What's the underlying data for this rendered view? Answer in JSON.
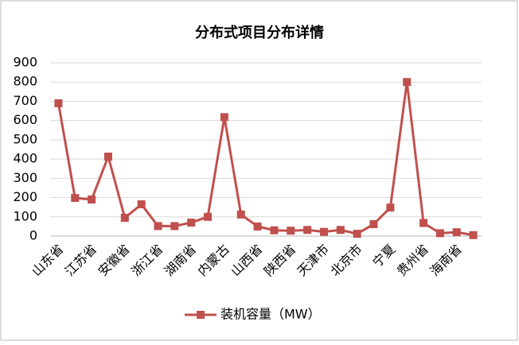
{
  "chart_data": {
    "type": "line",
    "title": "分布式项目分布详情",
    "categories": [
      "山东省",
      null,
      "江苏省",
      null,
      "安徽省",
      null,
      "浙江省",
      null,
      "湖南省",
      null,
      "内蒙古",
      null,
      "山西省",
      null,
      "陕西省",
      null,
      "天津市",
      null,
      "北京市",
      null,
      "宁夏",
      null,
      "贵州省",
      null,
      "海南省",
      null
    ],
    "series": [
      {
        "name": "装机容量（MW）",
        "color": "#c0504d",
        "values": [
          690,
          198,
          190,
          413,
          95,
          165,
          52,
          52,
          70,
          100,
          618,
          112,
          50,
          30,
          28,
          32,
          22,
          32,
          12,
          62,
          148,
          800,
          68,
          15,
          20,
          5
        ]
      }
    ],
    "ylim": [
      0,
      900
    ],
    "yticks": [
      0,
      100,
      200,
      300,
      400,
      500,
      600,
      700,
      800,
      900
    ],
    "grid": true,
    "legend": "bottom"
  }
}
